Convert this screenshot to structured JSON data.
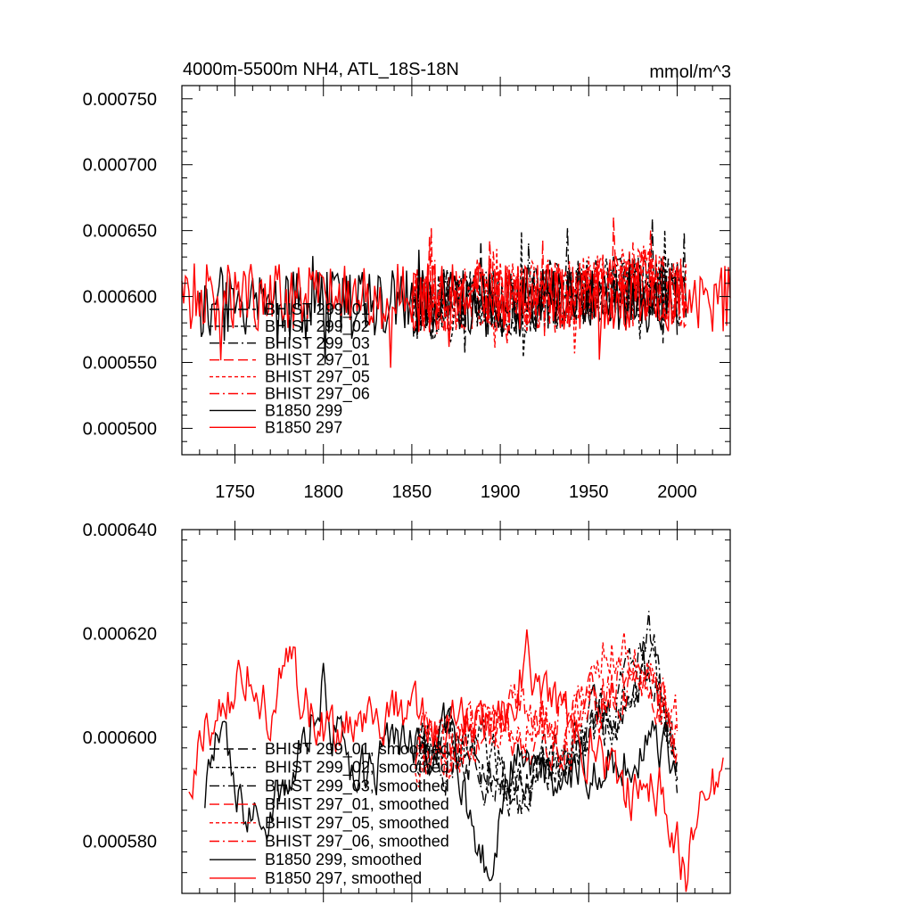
{
  "chart_data": [
    {
      "type": "line",
      "title": "4000m-5500m NH4, ATL_18S-18N",
      "units_label": "mmol/m^3",
      "xlim": [
        1720,
        2030
      ],
      "ylim": [
        0.00048,
        0.00076
      ],
      "x_ticks": [
        1750,
        1800,
        1850,
        1900,
        1950,
        2000
      ],
      "x_tick_labels": [
        "1750",
        "1800",
        "1850",
        "1900",
        "1950",
        "2000"
      ],
      "y_ticks": [
        0.0005,
        0.00055,
        0.0006,
        0.00065,
        0.0007,
        0.00075
      ],
      "y_tick_labels": [
        "0.000500",
        "0.000550",
        "0.000600",
        "0.000650",
        "0.000700",
        "0.000750"
      ],
      "noise_amplitude": 2.6e-05,
      "legend_position": "lower-left",
      "series": [
        {
          "name": "BHIST 299_01",
          "color": "#000000",
          "dash": "longdash",
          "x_start": 1850,
          "x_end": 2005,
          "base": 0.000595,
          "trend": [
            [
              1850,
              0.000592
            ],
            [
              1920,
              0.000597
            ],
            [
              1980,
              0.000608
            ],
            [
              2005,
              0.0006
            ]
          ]
        },
        {
          "name": "BHIST 299_02",
          "color": "#000000",
          "dash": "short",
          "x_start": 1850,
          "x_end": 2005,
          "base": 0.000595,
          "trend": [
            [
              1850,
              0.00059
            ],
            [
              1920,
              0.000596
            ],
            [
              1980,
              0.00061
            ],
            [
              2005,
              0.000598
            ]
          ]
        },
        {
          "name": "BHIST 299_03",
          "color": "#000000",
          "dash": "dashdot",
          "x_start": 1850,
          "x_end": 2005,
          "base": 0.000595,
          "trend": [
            [
              1850,
              0.000594
            ],
            [
              1920,
              0.000598
            ],
            [
              1980,
              0.000607
            ],
            [
              2005,
              0.000601
            ]
          ]
        },
        {
          "name": "BHIST 297_01",
          "color": "#ff0000",
          "dash": "longdash",
          "x_start": 1850,
          "x_end": 2005,
          "base": 0.000598,
          "trend": [
            [
              1850,
              0.000596
            ],
            [
              1920,
              0.0006
            ],
            [
              1980,
              0.000612
            ],
            [
              2005,
              0.000602
            ]
          ]
        },
        {
          "name": "BHIST 297_05",
          "color": "#ff0000",
          "dash": "short",
          "x_start": 1850,
          "x_end": 2005,
          "base": 0.000598,
          "trend": [
            [
              1850,
              0.000597
            ],
            [
              1920,
              0.000601
            ],
            [
              1980,
              0.000613
            ],
            [
              2005,
              0.000603
            ]
          ]
        },
        {
          "name": "BHIST 297_06",
          "color": "#ff0000",
          "dash": "dashdot",
          "x_start": 1850,
          "x_end": 2005,
          "base": 0.000598,
          "trend": [
            [
              1850,
              0.000595
            ],
            [
              1920,
              0.000599
            ],
            [
              1980,
              0.000611
            ],
            [
              2005,
              0.0006
            ]
          ]
        },
        {
          "name": "B1850 299",
          "color": "#000000",
          "dash": "solid",
          "x_start": 1730,
          "x_end": 2000,
          "base": 0.000594,
          "trend": [
            [
              1730,
              0.000592
            ],
            [
              1850,
              0.000594
            ],
            [
              1950,
              0.000596
            ],
            [
              2000,
              0.000597
            ]
          ]
        },
        {
          "name": "B1850 297",
          "color": "#ff0000",
          "dash": "solid",
          "x_start": 1720,
          "x_end": 2030,
          "base": 0.0006,
          "trend": [
            [
              1720,
              0.0006
            ],
            [
              1850,
              0.000601
            ],
            [
              1950,
              0.0006
            ],
            [
              2030,
              0.000598
            ]
          ]
        }
      ]
    },
    {
      "type": "line",
      "title": "",
      "units_label": "",
      "xlim": [
        1720,
        2030
      ],
      "ylim": [
        0.00057,
        0.00064
      ],
      "x_ticks": [
        1750,
        1800,
        1850,
        1900,
        1950,
        2000
      ],
      "x_tick_labels": [],
      "y_ticks": [
        0.00058,
        0.0006,
        0.00062,
        0.00064
      ],
      "y_tick_labels": [
        "0.000580",
        "0.000600",
        "0.000620",
        "0.000640"
      ],
      "noise_amplitude": 4.5e-06,
      "legend_position": "lower-left",
      "series": [
        {
          "name": "BHIST 299_01, smoothed",
          "color": "#000000",
          "dash": "longdash",
          "x_start": 1852,
          "x_end": 2000,
          "trend": [
            [
              1852,
              0.0006
            ],
            [
              1880,
              0.000598
            ],
            [
              1910,
              0.00059
            ],
            [
              1940,
              0.000598
            ],
            [
              1960,
              0.000605
            ],
            [
              1985,
              0.000612
            ],
            [
              2000,
              0.000596
            ]
          ]
        },
        {
          "name": "BHIST 299_02, smoothed",
          "color": "#000000",
          "dash": "short",
          "x_start": 1852,
          "x_end": 2000,
          "trend": [
            [
              1852,
              0.0006
            ],
            [
              1880,
              0.000601
            ],
            [
              1910,
              0.000592
            ],
            [
              1940,
              0.000597
            ],
            [
              1960,
              0.000603
            ],
            [
              1985,
              0.000615
            ],
            [
              2000,
              0.000598
            ]
          ]
        },
        {
          "name": "BHIST 299_03, smoothed",
          "color": "#000000",
          "dash": "dashdot",
          "x_start": 1852,
          "x_end": 2000,
          "trend": [
            [
              1852,
              0.000598
            ],
            [
              1880,
              0.000596
            ],
            [
              1910,
              0.000588
            ],
            [
              1940,
              0.000596
            ],
            [
              1960,
              0.000604
            ],
            [
              1985,
              0.00062
            ],
            [
              2000,
              0.000595
            ]
          ]
        },
        {
          "name": "BHIST 297_01, smoothed",
          "color": "#ff0000",
          "dash": "longdash",
          "x_start": 1852,
          "x_end": 2000,
          "trend": [
            [
              1852,
              0.000598
            ],
            [
              1880,
              0.0006
            ],
            [
              1910,
              0.000602
            ],
            [
              1940,
              0.0006
            ],
            [
              1960,
              0.00061
            ],
            [
              1985,
              0.000612
            ],
            [
              2000,
              0.0006
            ]
          ]
        },
        {
          "name": "BHIST 297_05, smoothed",
          "color": "#ff0000",
          "dash": "short",
          "x_start": 1852,
          "x_end": 2000,
          "trend": [
            [
              1852,
              0.000597
            ],
            [
              1880,
              0.000598
            ],
            [
              1910,
              0.000603
            ],
            [
              1940,
              0.000601
            ],
            [
              1960,
              0.000618
            ],
            [
              1985,
              0.00061
            ],
            [
              2000,
              0.000602
            ]
          ]
        },
        {
          "name": "BHIST 297_06, smoothed",
          "color": "#ff0000",
          "dash": "dashdot",
          "x_start": 1852,
          "x_end": 2000,
          "trend": [
            [
              1852,
              0.000599
            ],
            [
              1880,
              0.0006
            ],
            [
              1910,
              0.000605
            ],
            [
              1940,
              0.000603
            ],
            [
              1960,
              0.000608
            ],
            [
              1985,
              0.000614
            ],
            [
              2000,
              0.000601
            ]
          ]
        },
        {
          "name": "B1850 299, smoothed",
          "color": "#000000",
          "dash": "solid",
          "x_start": 1733,
          "x_end": 2000,
          "trend": [
            [
              1733,
              0.00059
            ],
            [
              1740,
              0.0006
            ],
            [
              1750,
              0.00059
            ],
            [
              1765,
              0.000583
            ],
            [
              1780,
              0.000592
            ],
            [
              1800,
              0.00061
            ],
            [
              1815,
              0.00059
            ],
            [
              1840,
              0.000598
            ],
            [
              1870,
              0.0006
            ],
            [
              1893,
              0.000575
            ],
            [
              1910,
              0.000598
            ],
            [
              1930,
              0.000592
            ],
            [
              1950,
              0.000596
            ],
            [
              1975,
              0.000597
            ],
            [
              2000,
              0.000598
            ]
          ]
        },
        {
          "name": "B1850 297, smoothed",
          "color": "#ff0000",
          "dash": "solid",
          "x_start": 1724,
          "x_end": 2026,
          "trend": [
            [
              1724,
              0.000593
            ],
            [
              1740,
              0.000605
            ],
            [
              1760,
              0.000615
            ],
            [
              1770,
              0.000605
            ],
            [
              1780,
              0.000613
            ],
            [
              1800,
              0.000602
            ],
            [
              1820,
              0.0006
            ],
            [
              1840,
              0.000605
            ],
            [
              1860,
              0.000601
            ],
            [
              1880,
              0.000605
            ],
            [
              1900,
              0.000603
            ],
            [
              1915,
              0.000615
            ],
            [
              1930,
              0.000605
            ],
            [
              1950,
              0.0006
            ],
            [
              1970,
              0.00059
            ],
            [
              1990,
              0.00059
            ],
            [
              2000,
              0.000582
            ],
            [
              2005,
              0.000572
            ],
            [
              2015,
              0.000592
            ],
            [
              2026,
              0.000592
            ]
          ]
        }
      ]
    }
  ]
}
